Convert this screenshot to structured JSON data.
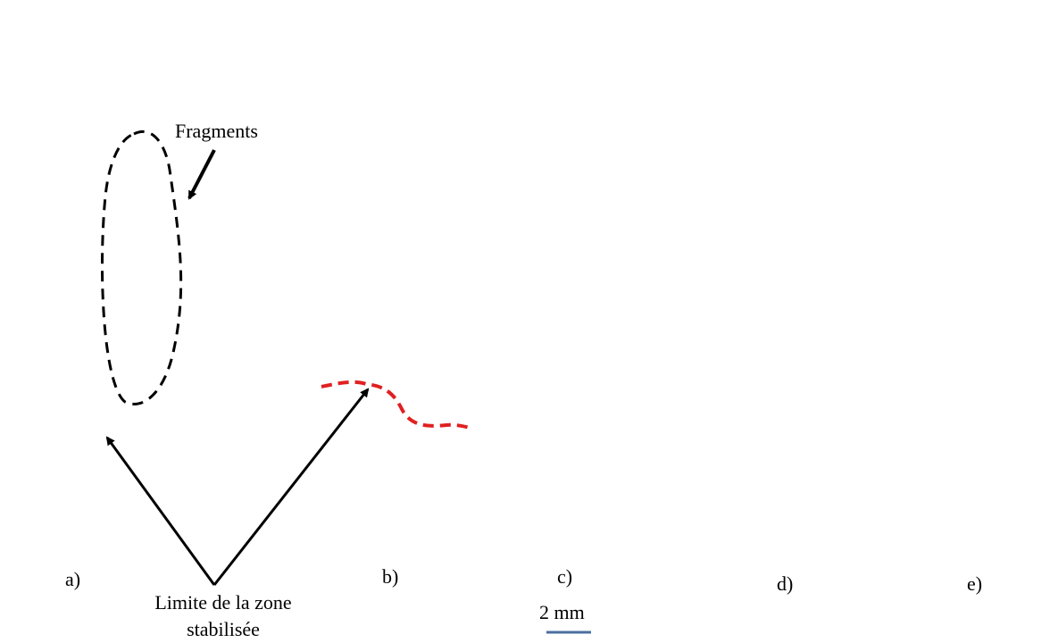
{
  "panel_labels": [
    "a)",
    "b)",
    "c)",
    "d)",
    "e)"
  ],
  "annotations": {
    "fragments": "Fragments",
    "limit_line1": "Limite de la zone",
    "limit_line2": "stabilisée"
  },
  "scale_bar": {
    "label": "2 mm",
    "color": "#4a6fa0"
  },
  "colors": {
    "fragment_outline": "#000000",
    "limit_outline_a": "#ffffff",
    "limit_outline_b": "#e02020"
  }
}
